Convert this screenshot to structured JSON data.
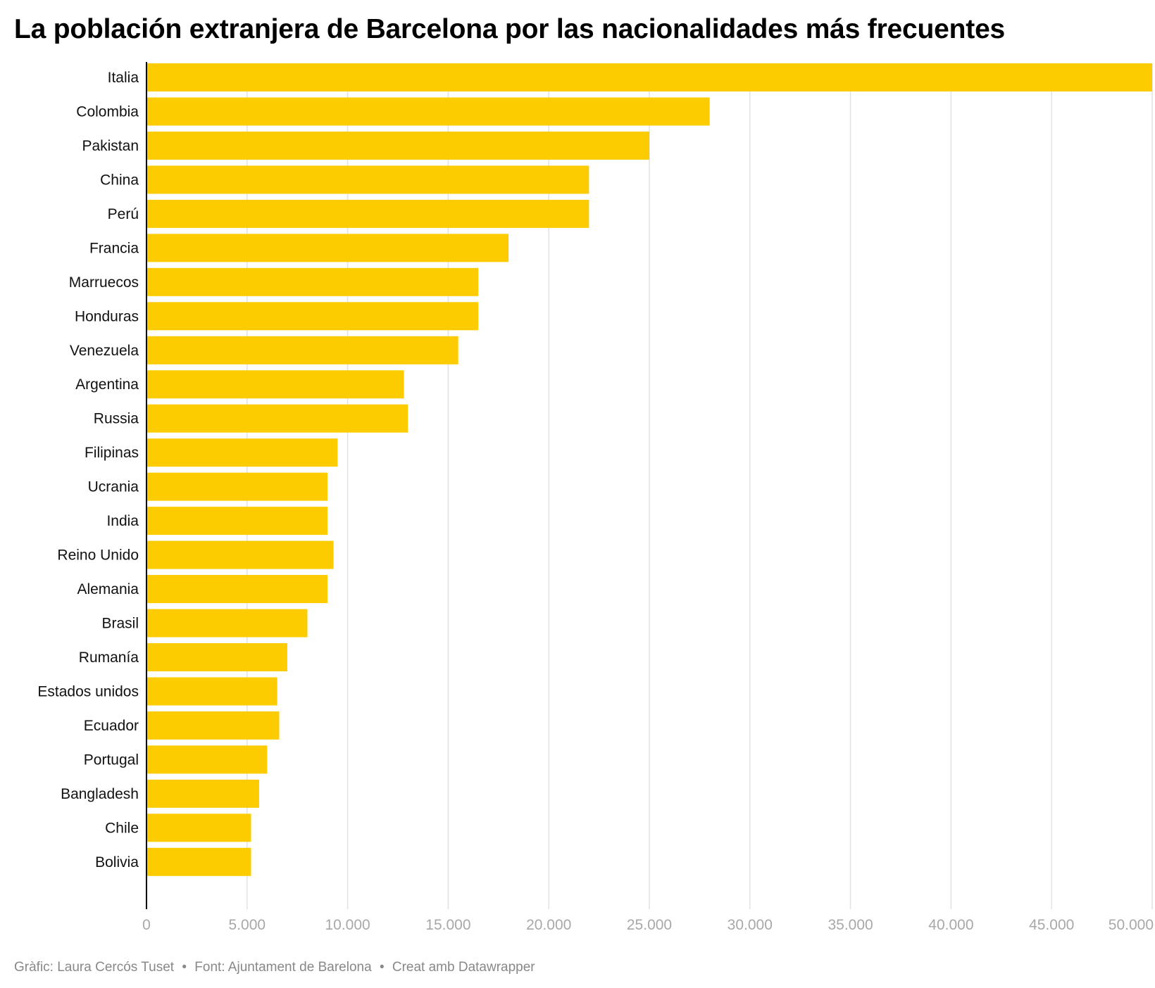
{
  "title": "La población extranjera de Barcelona por las nacionalidades más frecuentes",
  "footer": {
    "credit": "Gràfic: Laura Cercós Tuset",
    "source": "Font: Ajuntament de Barelona",
    "tool": "Creat amb Datawrapper",
    "separator": "•"
  },
  "colors": {
    "bar": "#FCCC00",
    "grid": "#e2e2e2",
    "axis": "#000000",
    "tick_label": "#a8a8a8",
    "category_label": "#111111",
    "footer": "#888888"
  },
  "chart_data": {
    "type": "bar",
    "orientation": "horizontal",
    "categories": [
      "Italia",
      "Colombia",
      "Pakistan",
      "China",
      "Perú",
      "Francia",
      "Marruecos",
      "Honduras",
      "Venezuela",
      "Argentina",
      "Russia",
      "Filipinas",
      "Ucrania",
      "India",
      "Reino Unido",
      "Alemania",
      "Brasil",
      "Rumanía",
      "Estados unidos",
      "Ecuador",
      "Portugal",
      "Bangladesh",
      "Chile",
      "Bolivia"
    ],
    "values": [
      50000,
      28000,
      25000,
      22000,
      22000,
      18000,
      16500,
      16500,
      15500,
      12800,
      13000,
      9500,
      9000,
      9000,
      9300,
      9000,
      8000,
      7000,
      6500,
      6600,
      6000,
      5600,
      5200,
      5200
    ],
    "xlim": [
      0,
      50000
    ],
    "x_ticks": [
      0,
      5000,
      10000,
      15000,
      20000,
      25000,
      30000,
      35000,
      40000,
      45000,
      50000
    ],
    "x_tick_labels": [
      "0",
      "5.000",
      "10.000",
      "15.000",
      "20.000",
      "25.000",
      "30.000",
      "35.000",
      "40.000",
      "45.000",
      "50.000"
    ],
    "grid": true,
    "legend": false,
    "xlabel": "",
    "ylabel": ""
  }
}
